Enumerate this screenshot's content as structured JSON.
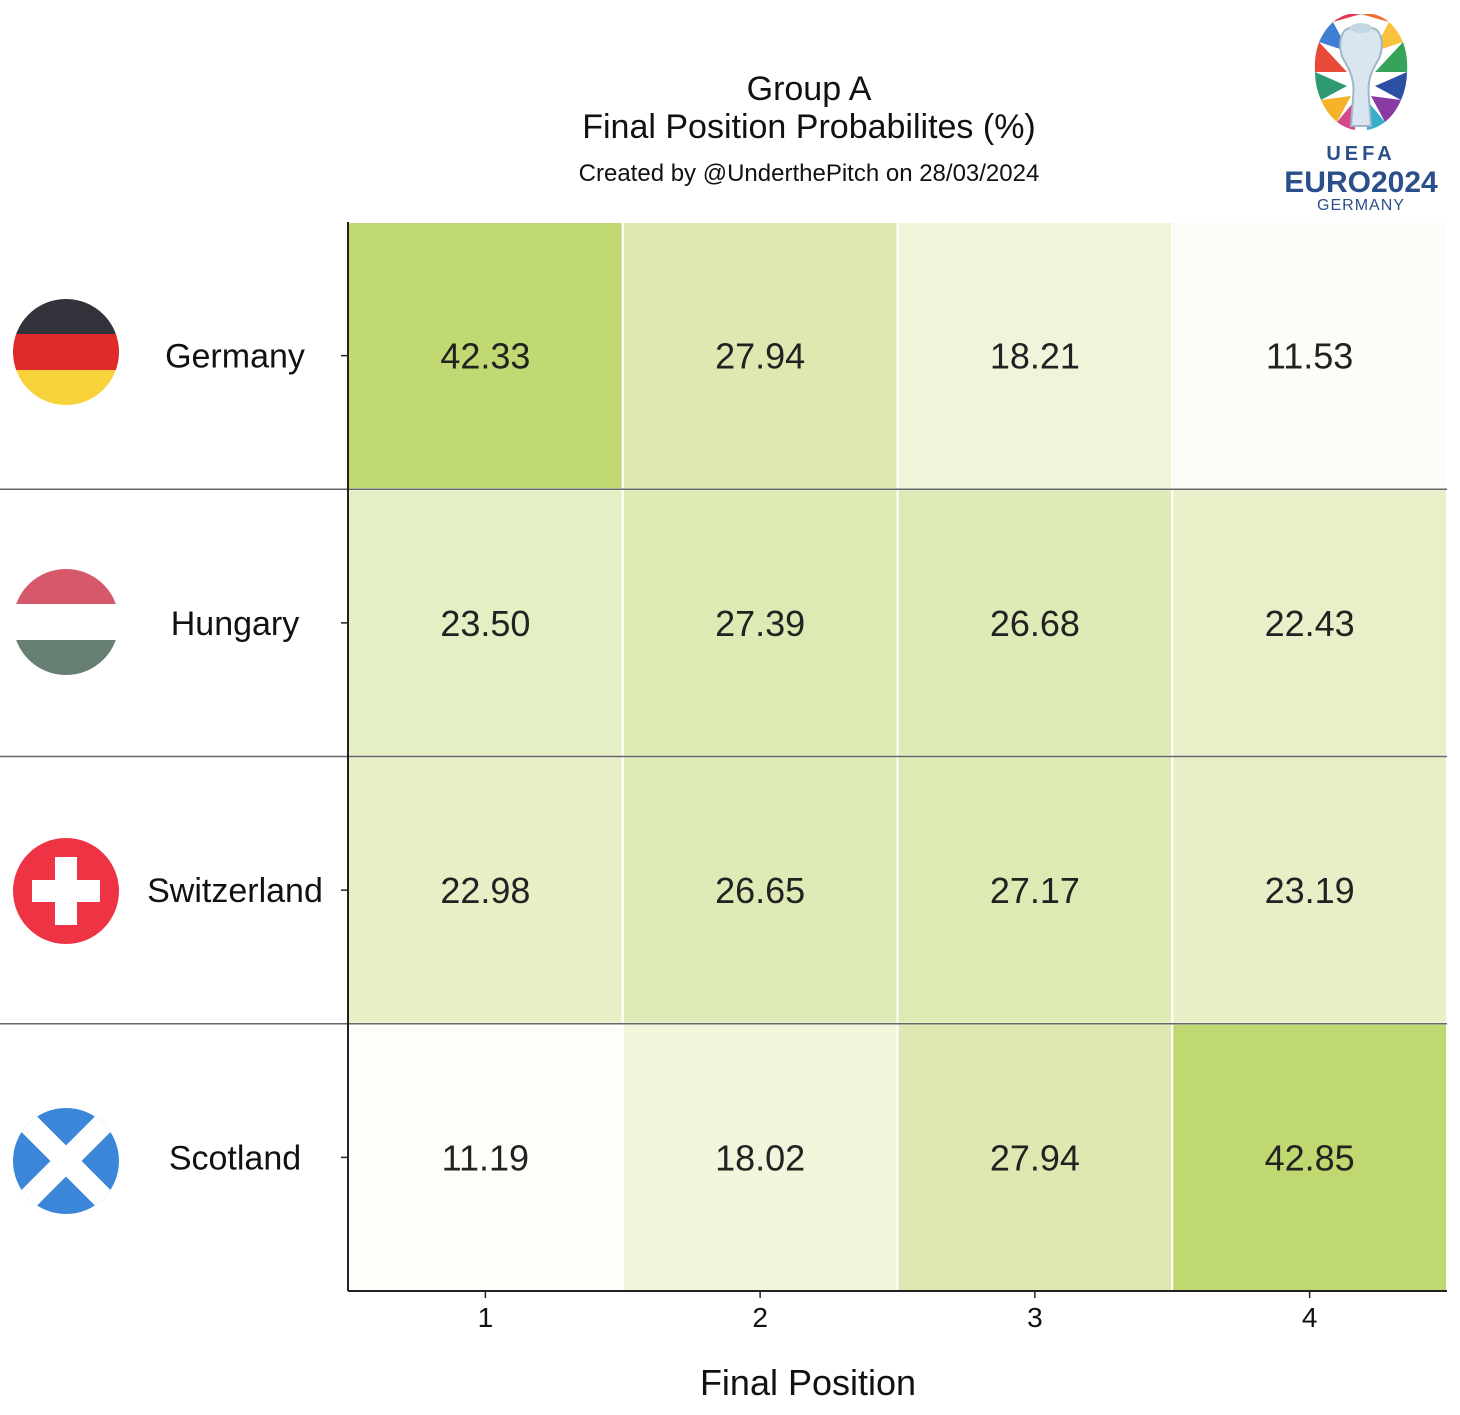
{
  "chart_data": {
    "type": "heatmap",
    "title": "Group A",
    "subtitle": "Final Position Probabilites (%)",
    "credit": "Created by @UnderthePitch on 28/03/2024",
    "xlabel": "Final Position",
    "x": [
      "1",
      "2",
      "3",
      "4"
    ],
    "rows": [
      {
        "team": "Germany",
        "flag": "germany-flag",
        "values": [
          42.33,
          27.94,
          18.21,
          11.53
        ]
      },
      {
        "team": "Hungary",
        "flag": "hungary-flag",
        "values": [
          23.5,
          27.39,
          26.68,
          22.43
        ]
      },
      {
        "team": "Switzerland",
        "flag": "switzerland-flag",
        "values": [
          22.98,
          26.65,
          27.17,
          23.19
        ]
      },
      {
        "team": "Scotland",
        "flag": "scotland-flag",
        "values": [
          11.19,
          18.02,
          27.94,
          42.85
        ]
      }
    ],
    "color_low": "#fdfdf9",
    "color_high": "#c0d870",
    "grid": false
  },
  "logo": {
    "name": "uefa-euro-2024-logo",
    "uefa": "UEFA",
    "euro": "EURO2024",
    "country": "GERMANY"
  }
}
